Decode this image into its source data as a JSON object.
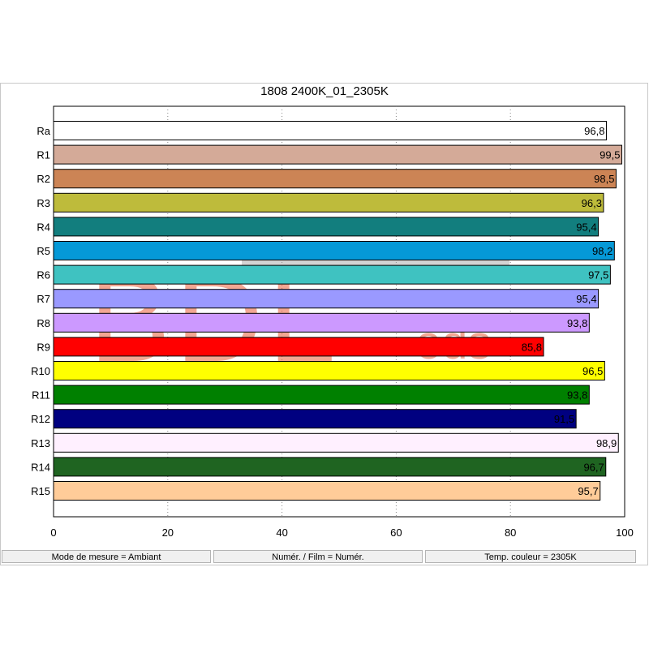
{
  "window": {
    "status": {
      "measure_mode": "Mode de mesure = Ambiant",
      "numeric_film": "Numér. / Film = Numér.",
      "color_temp": "Temp. couleur = 2305K"
    }
  },
  "watermark": {
    "main": "BDL",
    "sub": "eds",
    "color": "#e8603c"
  },
  "chart_data": {
    "type": "bar",
    "orientation": "horizontal",
    "title": "1808 2400K_01_2305K",
    "xlabel": "",
    "ylabel": "",
    "xlim": [
      0,
      100
    ],
    "xticks": [
      0,
      20,
      40,
      60,
      80,
      100
    ],
    "grid": "vertical dotted",
    "categories": [
      "Ra",
      "R1",
      "R2",
      "R3",
      "R4",
      "R5",
      "R6",
      "R7",
      "R8",
      "R9",
      "R10",
      "R11",
      "R12",
      "R13",
      "R14",
      "R15"
    ],
    "values": [
      96.8,
      99.5,
      98.5,
      96.3,
      95.4,
      98.2,
      97.5,
      95.4,
      93.8,
      85.8,
      96.5,
      93.8,
      91.5,
      98.9,
      96.7,
      95.7
    ],
    "value_labels": [
      "96,8",
      "99,5",
      "98,5",
      "96,3",
      "95,4",
      "98,2",
      "97,5",
      "95,4",
      "93,8",
      "85,8",
      "96,5",
      "93,8",
      "91,5",
      "98,9",
      "96,7",
      "95,7"
    ],
    "colors": [
      "#ffffff",
      "#d4aa98",
      "#cc8455",
      "#bebb3b",
      "#127e7e",
      "#0599d7",
      "#3fc2c1",
      "#9a99ff",
      "#cc99ff",
      "#ff0000",
      "#ffff00",
      "#008000",
      "#000080",
      "#fff0ff",
      "#1f6421",
      "#ffcc99"
    ]
  }
}
